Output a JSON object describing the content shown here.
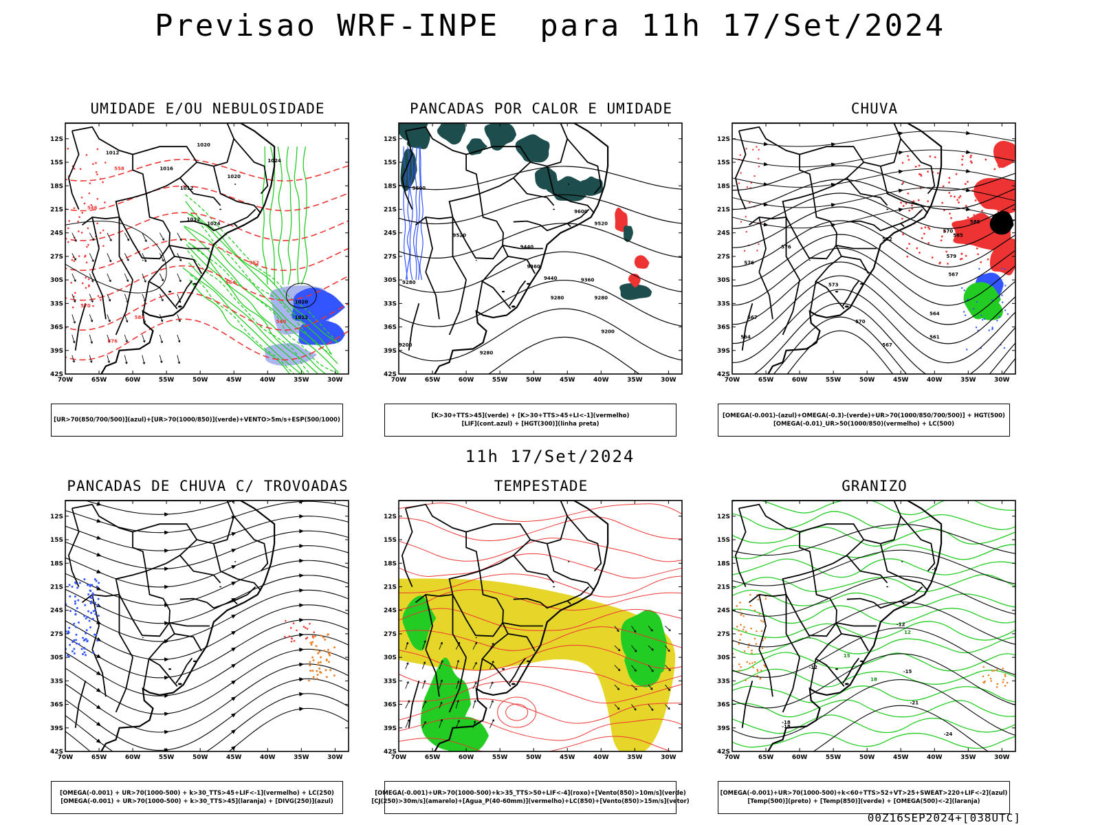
{
  "title": "Previsao WRF-INPE  para 11h 17/Set/2024",
  "mid_title": "11h 17/Set/2024",
  "footer": "00Z16SEP2024+[038UTC]",
  "lat_labels": [
    "12S",
    "15S",
    "18S",
    "21S",
    "24S",
    "27S",
    "30S",
    "33S",
    "36S",
    "39S",
    "42S"
  ],
  "lon_labels": [
    "70W",
    "65W",
    "60W",
    "55W",
    "50W",
    "45W",
    "40W",
    "35W",
    "30W"
  ],
  "colors": {
    "green": "#22cc22",
    "red": "#ee3333",
    "blue": "#3355ff",
    "darkteal": "#1e4d4d",
    "yellow": "#e6d62a",
    "orange": "#e8822a",
    "lightblue": "#aab4ee"
  },
  "panels": [
    {
      "title": "UMIDADE E/OU NEBULOSIDADE",
      "legend": [
        "[UR>70(850/700/500)](azul)+[UR>70(1000/850)](verde)+VENTO>5m/s+ESP(500/1000)"
      ],
      "labels": [
        "1012",
        "1016",
        "1020",
        "1024",
        "1012",
        "1012",
        "1024",
        "1020",
        "1020",
        "1012",
        "584",
        "576",
        "570",
        "546",
        "558",
        "564",
        "540",
        "552"
      ]
    },
    {
      "title": "PANCADAS POR CALOR E UMIDADE",
      "legend": [
        "[K>30+TTS>45](verde) + [K>30+TTS>45+LI<-1](vermelho)",
        "[LIF](cont.azul) + [HGT(300)](linha preta)"
      ],
      "labels": [
        "9600",
        "9600",
        "9520",
        "9440",
        "9360",
        "9280",
        "9520",
        "9440",
        "9360",
        "9280",
        "9200",
        "9280",
        "9280",
        "9200"
      ]
    },
    {
      "title": "CHUVA",
      "legend": [
        "[OMEGA(-0.001)-(azul)+OMEGA(-0.3)-(verde)+UR>70(1000/850/700/500)] + HGT(500)",
        "[OMEGA(-0.01)_UR>50(1000/850)(vermelho) + LC(500)"
      ],
      "labels": [
        "585",
        "582",
        "579",
        "576",
        "573",
        "570",
        "567",
        "564",
        "561",
        "567",
        "564",
        "576",
        "585",
        "570",
        "567"
      ]
    },
    {
      "title": "PANCADAS DE CHUVA C/ TROVOADAS",
      "legend": [
        "[OMEGA(-0.001) + UR>70(1000-500) + k>30_TTS>45+LIF<-1](vermelho) + LC(250)",
        "[OMEGA(-0.001) + UR>70(1000-500) + k>30_TTS>45](laranja) + [DIVG(250)](azul)"
      ],
      "labels": []
    },
    {
      "title": "TEMPESTADE",
      "legend": [
        "[OMEGA(-0.001)+UR>70(1000-500)+k>35_TTS>50+LIF<-4](roxo)+[Vento(850)>10m/s](verde)",
        "[CJ(250)>30m/s](amarelo)+[Agua_P(40-60mm)](vermelho)+LC(850)+[Vento(850)>15m/s](vetor)"
      ],
      "labels": []
    },
    {
      "title": "GRANIZO",
      "legend": [
        "[OMEGA(-0.001)+UR>70(1000-500)+k<60+TTS>52+VT>25+SWEAT>220+LIF<-2](azul)",
        "[Temp(500)](preto) + [Temp(850)](verde) + [OMEGA(500)<-2](laranja)"
      ],
      "labels": [
        "-9",
        "-12",
        "-15",
        "-18",
        "-21",
        "-24",
        "12",
        "15",
        "18",
        "-12",
        "-18"
      ]
    }
  ]
}
